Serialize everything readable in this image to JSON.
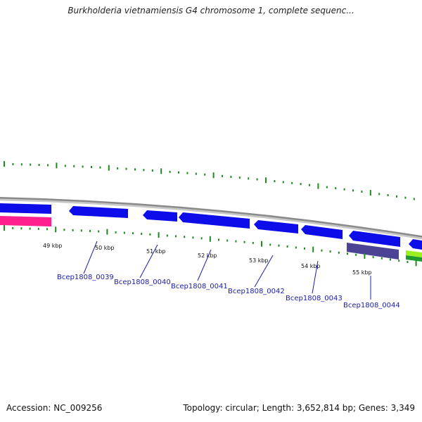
{
  "title": "Burkholderia vietnamiensis G4 chromosome 1, complete sequenc...",
  "footer": {
    "accession": "Accession: NC_009256",
    "summary": "Topology: circular; Length: 3,652,814 bp; Genes: 3,349"
  },
  "colors": {
    "backbone": "#8a8a8a",
    "gene_forward": "#0d0dea",
    "gene_pink": "#ff1f8f",
    "gene_purple": "#4b4494",
    "gene_green": "#1f9a2f",
    "gene_lime": "#9cf01e",
    "tick": "#1f8a1f",
    "label": "#1c1ca8"
  },
  "scale_labels": [
    "49 kbp",
    "50 kbp",
    "51 kbp",
    "52 kbp",
    "53 kbp",
    "54 kbp",
    "55 kbp"
  ],
  "gene_labels": [
    "Bcep1808_0039",
    "Bcep1808_0040",
    "Bcep1808_0041",
    "Bcep1808_0042",
    "Bcep1808_0043",
    "Bcep1808_0044"
  ]
}
